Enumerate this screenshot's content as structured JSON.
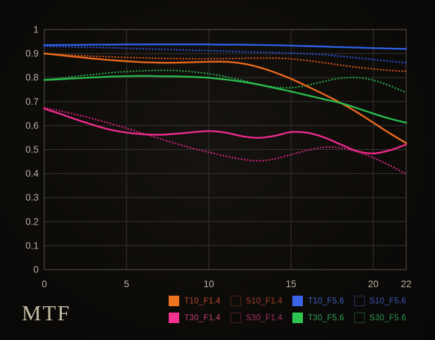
{
  "chart_data": {
    "type": "line",
    "title": "MTF",
    "xlabel": "",
    "ylabel": "",
    "xlim": [
      0,
      22
    ],
    "ylim": [
      0,
      1
    ],
    "grid": true,
    "legend_position": "bottom-right",
    "x_ticks": [
      "0",
      "5",
      "10",
      "15",
      "20",
      "22"
    ],
    "y_ticks": [
      "0",
      "0.1",
      "0.2",
      "0.3",
      "0.4",
      "0.5",
      "0.6",
      "0.7",
      "0.8",
      "0.9",
      "1"
    ],
    "x": [
      0,
      1,
      2,
      3,
      4,
      5,
      6,
      7,
      8,
      9,
      10,
      11,
      12,
      13,
      14,
      15,
      16,
      17,
      18,
      19,
      20,
      21,
      22
    ],
    "series": [
      {
        "name": "T10_F1.4",
        "style": "solid",
        "color": "#ed6a1e",
        "swatch_color": "#f0731f",
        "label_color": "#bb4c30",
        "values": [
          0.9,
          0.893,
          0.886,
          0.879,
          0.873,
          0.868,
          0.864,
          0.862,
          0.862,
          0.864,
          0.866,
          0.866,
          0.859,
          0.844,
          0.822,
          0.795,
          0.763,
          0.73,
          0.695,
          0.656,
          0.612,
          0.568,
          0.527
        ]
      },
      {
        "name": "T30_F1.4",
        "style": "solid",
        "color": "#ee2b8d",
        "swatch_color": "#f4318f",
        "label_color": "#bd4073",
        "values": [
          0.67,
          0.648,
          0.624,
          0.602,
          0.583,
          0.571,
          0.564,
          0.562,
          0.566,
          0.572,
          0.577,
          0.571,
          0.556,
          0.549,
          0.557,
          0.573,
          0.57,
          0.551,
          0.522,
          0.494,
          0.484,
          0.497,
          0.521
        ]
      },
      {
        "name": "S10_F1.4",
        "style": "dotted",
        "color": "#d4541c",
        "swatch_color": "#8f3a1e",
        "label_color": "#a33c28",
        "values": [
          0.9,
          0.896,
          0.892,
          0.889,
          0.886,
          0.884,
          0.882,
          0.88,
          0.879,
          0.878,
          0.878,
          0.879,
          0.88,
          0.881,
          0.881,
          0.878,
          0.871,
          0.862,
          0.852,
          0.843,
          0.836,
          0.83,
          0.826
        ]
      },
      {
        "name": "S30_F1.4",
        "style": "dotted",
        "color": "#c92478",
        "swatch_color": "#93295c",
        "label_color": "#a23166",
        "values": [
          0.675,
          0.66,
          0.645,
          0.628,
          0.609,
          0.589,
          0.567,
          0.546,
          0.525,
          0.506,
          0.489,
          0.473,
          0.46,
          0.453,
          0.461,
          0.479,
          0.497,
          0.51,
          0.507,
          0.491,
          0.466,
          0.434,
          0.398
        ]
      },
      {
        "name": "T10_F5.6",
        "style": "solid",
        "color": "#2e5fe6",
        "swatch_color": "#3a63e8",
        "label_color": "#4061c6",
        "values": [
          0.935,
          0.936,
          0.936,
          0.937,
          0.937,
          0.938,
          0.938,
          0.938,
          0.938,
          0.938,
          0.938,
          0.937,
          0.937,
          0.936,
          0.935,
          0.933,
          0.931,
          0.929,
          0.927,
          0.925,
          0.923,
          0.921,
          0.919
        ]
      },
      {
        "name": "T30_F5.6",
        "style": "solid",
        "color": "#2abc4e",
        "swatch_color": "#2ec653",
        "label_color": "#2fa257",
        "values": [
          0.79,
          0.793,
          0.797,
          0.801,
          0.804,
          0.806,
          0.807,
          0.806,
          0.805,
          0.803,
          0.799,
          0.792,
          0.783,
          0.771,
          0.757,
          0.742,
          0.726,
          0.71,
          0.694,
          0.673,
          0.65,
          0.629,
          0.612
        ]
      },
      {
        "name": "S10_F5.6",
        "style": "dotted",
        "color": "#2950d8",
        "swatch_color": "#3a57c0",
        "label_color": "#3c58ba",
        "values": [
          0.93,
          0.929,
          0.927,
          0.926,
          0.924,
          0.922,
          0.92,
          0.918,
          0.916,
          0.914,
          0.912,
          0.91,
          0.908,
          0.906,
          0.904,
          0.902,
          0.899,
          0.895,
          0.889,
          0.882,
          0.875,
          0.868,
          0.862
        ]
      },
      {
        "name": "S30_F5.6",
        "style": "dotted",
        "color": "#28a348",
        "swatch_color": "#2c8c46",
        "label_color": "#2f9753",
        "values": [
          0.79,
          0.798,
          0.806,
          0.813,
          0.82,
          0.825,
          0.828,
          0.83,
          0.829,
          0.824,
          0.816,
          0.804,
          0.789,
          0.773,
          0.76,
          0.758,
          0.768,
          0.784,
          0.797,
          0.8,
          0.789,
          0.766,
          0.737
        ]
      }
    ]
  },
  "style_tokens": {
    "background": "#0e0c09",
    "grid_color": "#373431",
    "border_color": "#57534a",
    "tick_label_color": "#b5ae9e",
    "title_color": "#c7bda6"
  }
}
